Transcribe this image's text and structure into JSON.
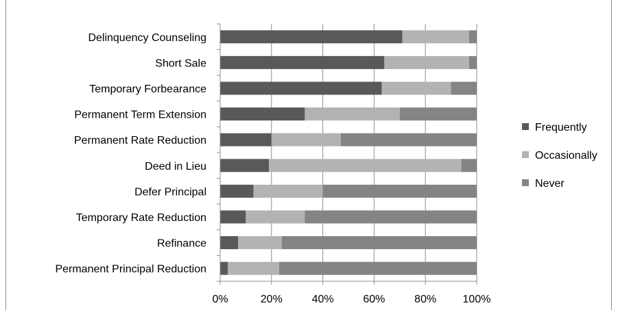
{
  "chart_data": {
    "type": "bar",
    "orientation": "horizontal",
    "stacked": "percent",
    "categories": [
      "Delinquency Counseling",
      "Short Sale",
      "Temporary Forbearance",
      "Permanent Term Extension",
      "Permanent Rate Reduction",
      "Deed in Lieu",
      "Defer Principal",
      "Temporary Rate Reduction",
      "Refinance",
      "Permanent Principal Reduction"
    ],
    "series": [
      {
        "name": "Frequently",
        "color": "#595959",
        "values": [
          71,
          64,
          63,
          33,
          20,
          19,
          13,
          10,
          7,
          3
        ]
      },
      {
        "name": "Occasionally",
        "color": "#b3b3b3",
        "values": [
          26,
          33,
          27,
          37,
          27,
          75,
          27,
          23,
          17,
          20
        ]
      },
      {
        "name": "Never",
        "color": "#848484",
        "values": [
          3,
          3,
          10,
          30,
          53,
          6,
          60,
          67,
          76,
          77
        ]
      }
    ],
    "xlim": [
      0,
      100
    ],
    "x_ticks": [
      "0%",
      "20%",
      "40%",
      "60%",
      "80%",
      "100%"
    ],
    "grid": true,
    "legend_position": "right"
  }
}
